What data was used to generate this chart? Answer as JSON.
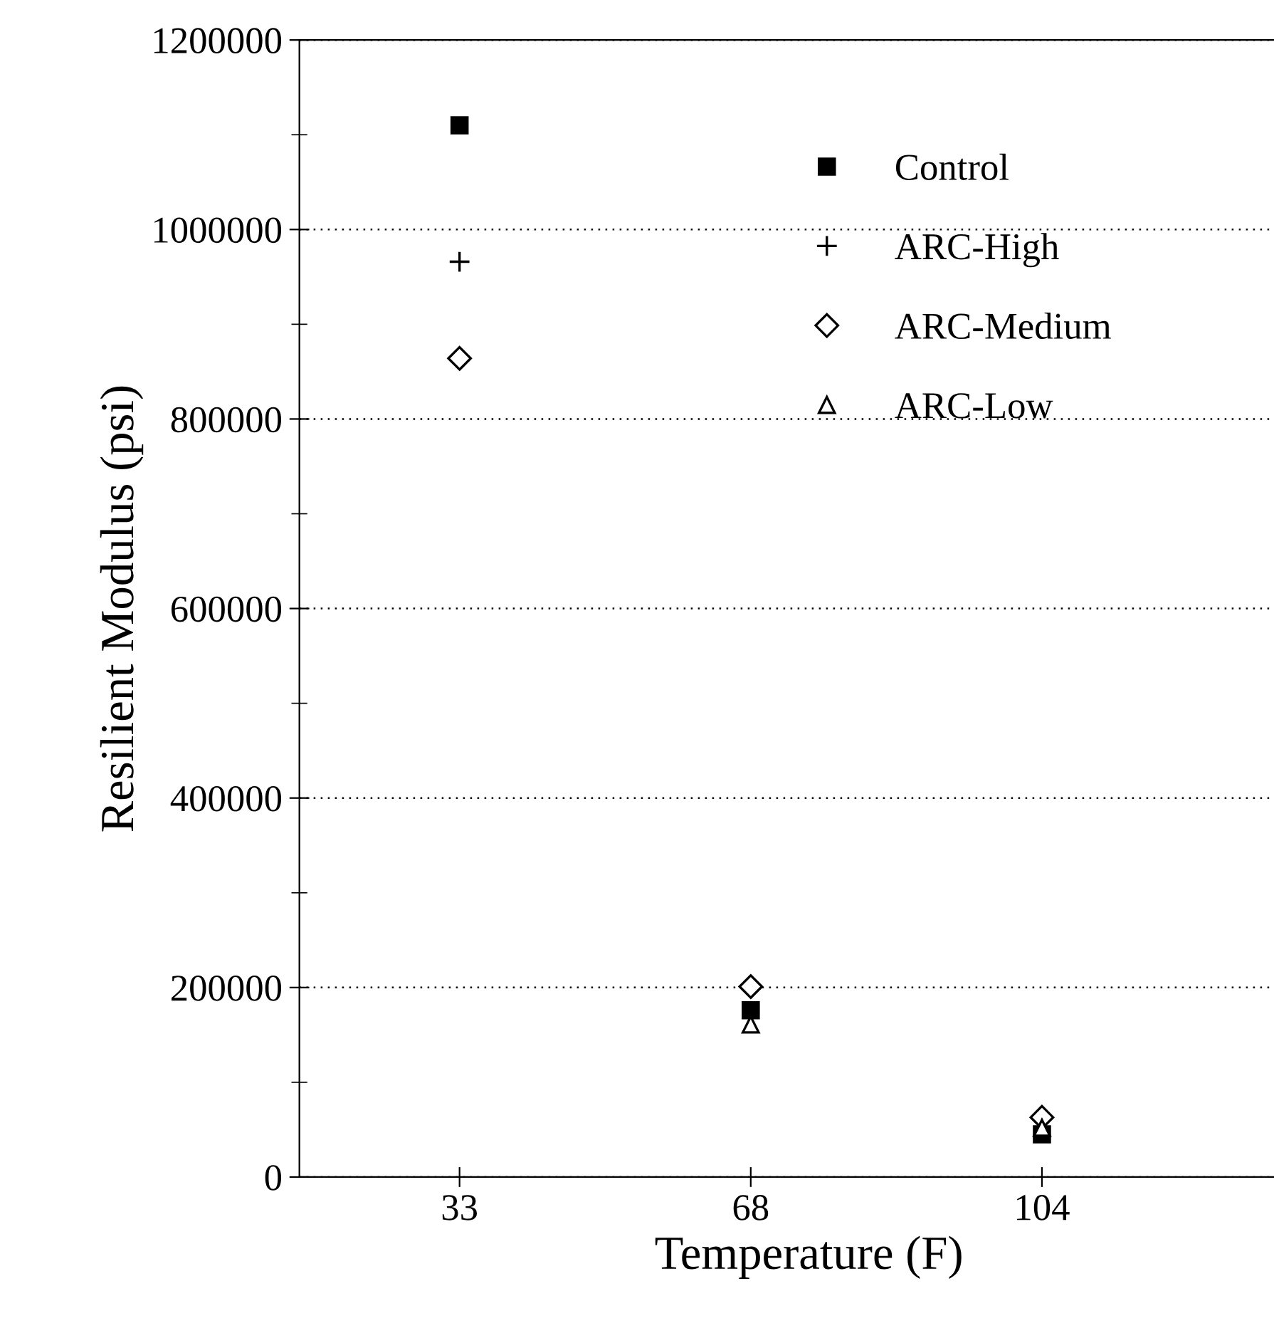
{
  "chart_data": {
    "type": "scatter",
    "xlabel": "Temperature (F)",
    "ylabel": "Resilient Modulus (psi)",
    "categories": [
      "33",
      "68",
      "104"
    ],
    "series": [
      {
        "name": "Control",
        "color": "#000000",
        "marker": "square",
        "values": [
          1110000,
          176000,
          45000
        ]
      },
      {
        "name": "ARC-High",
        "color": "#000000",
        "marker": "cross",
        "values": [
          966000,
          null,
          null
        ]
      },
      {
        "name": "ARC-Medium",
        "color": "#000000",
        "marker": "diamond",
        "values": [
          864000,
          201000,
          63000
        ]
      },
      {
        "name": "ARC-Low",
        "color": "#000000",
        "marker": "triangle",
        "values": [
          null,
          161000,
          52000
        ]
      }
    ],
    "ylim": [
      0,
      1200000
    ],
    "yticks": [
      0,
      {
        "value": 100000,
        "label": null
      },
      200000,
      {
        "value": 300000,
        "label": null
      },
      400000,
      {
        "value": 500000,
        "label": null
      },
      600000,
      {
        "value": 700000,
        "label": null
      },
      800000,
      {
        "value": 900000,
        "label": null
      },
      1000000,
      {
        "value": 1100000,
        "label": null
      },
      1200000
    ],
    "grid": "y",
    "legend": "top right"
  }
}
